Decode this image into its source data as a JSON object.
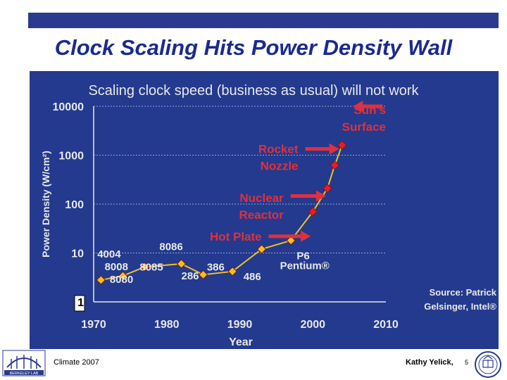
{
  "slide": {
    "title": "Clock Scaling Hits Power Density Wall",
    "footer_left": "Climate 2007",
    "footer_right": "Kathy Yelick,",
    "page_number": "5",
    "logo_left_text": "BERKELEY LAB"
  },
  "colors": {
    "title": "#1a2a8f",
    "panel": "#233a8e",
    "label": "#e8e8e8",
    "arrow": "#e0303c",
    "marker": "#e0202a",
    "marker_gold": "#f0c020",
    "line": "#f0c020"
  },
  "chart_data": {
    "type": "line",
    "title": "Scaling clock speed (business as usual) will not work",
    "xlabel": "Year",
    "ylabel": "Power Density (W/cm²)",
    "scale": "log",
    "xlim": [
      1970,
      2010
    ],
    "ylim": [
      1,
      10000
    ],
    "x_ticks": [
      "1970",
      "1980",
      "1990",
      "2000",
      "2010"
    ],
    "y_ticks": [
      "1",
      "10",
      "100",
      "1000",
      "10000"
    ],
    "series": [
      {
        "values": [
          {
            "x": 1971,
            "y": 2.8
          },
          {
            "x": 1974,
            "y": 3.4
          },
          {
            "x": 1977,
            "y": 5.2
          },
          {
            "x": 1982,
            "y": 6.0
          },
          {
            "x": 1985,
            "y": 3.6
          },
          {
            "x": 1989,
            "y": 4.2
          },
          {
            "x": 1993,
            "y": 12.0
          },
          {
            "x": 1997,
            "y": 18.0
          },
          {
            "x": 2000,
            "y": 70.0
          },
          {
            "x": 2002,
            "y": 210.0
          },
          {
            "x": 2003,
            "y": 620.0
          },
          {
            "x": 2004,
            "y": 1600.0
          }
        ]
      }
    ],
    "point_labels": [
      {
        "text": "4004",
        "x": 1970.5,
        "y": 9.8
      },
      {
        "text": "8008",
        "x": 1971.5,
        "y": 5.4
      },
      {
        "text": "8080",
        "x": 1972.2,
        "y": 3.0
      },
      {
        "text": "8085",
        "x": 1976.3,
        "y": 5.3
      },
      {
        "text": "8086",
        "x": 1979.0,
        "y": 14.0
      },
      {
        "text": "286",
        "x": 1982.0,
        "y": 3.5
      },
      {
        "text": "386",
        "x": 1985.5,
        "y": 5.3
      },
      {
        "text": "486",
        "x": 1990.5,
        "y": 3.4
      },
      {
        "text": "P6",
        "x": 1997.8,
        "y": 9.0
      },
      {
        "text": "Pentium®",
        "x": 1995.5,
        "y": 5.7
      }
    ],
    "annotations": [
      {
        "lines": [
          "Hot Plate"
        ],
        "x": 1993,
        "y": 18,
        "arrow_to": {
          "x": 1999.7,
          "y": 18
        }
      },
      {
        "lines": [
          "Nuclear",
          "Reactor"
        ],
        "x": 1996,
        "y": 110,
        "arrow_to": {
          "x": 2001.8,
          "y": 120
        }
      },
      {
        "lines": [
          "Rocket",
          "Nozzle"
        ],
        "x": 1998,
        "y": 1100,
        "arrow_to": {
          "x": 2003.6,
          "y": 1100
        }
      },
      {
        "lines": [
          "Sun’s",
          "Surface"
        ],
        "x": 2010,
        "y": 7000,
        "arrow_from": {
          "x": 2005.5,
          "y": 10000
        }
      }
    ],
    "source": [
      "Source: Patrick",
      "Gelsinger, Intel®"
    ]
  }
}
